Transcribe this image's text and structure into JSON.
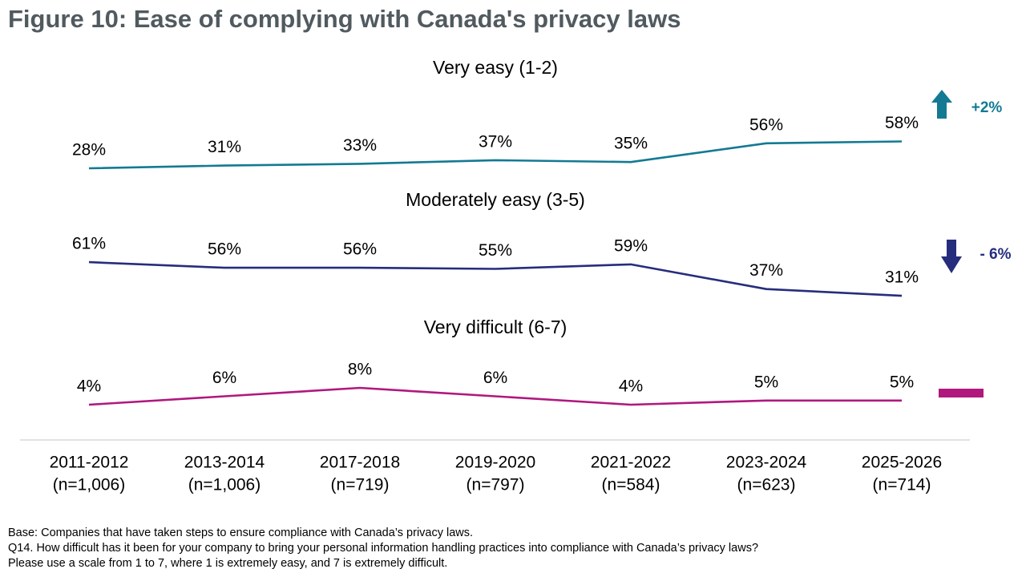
{
  "title": "Figure 10: Ease of complying with Canada's privacy laws",
  "footer": {
    "base": "Base: Companies that have taken steps to ensure compliance with Canada’s privacy laws.",
    "question": "Q14. How difficult has it been for your company to bring your personal information handling practices into compliance with Canada’s privacy laws?",
    "scale": "Please use a scale from 1 to 7, where 1 is extremely easy, and 7 is extremely difficult."
  },
  "chart_data": {
    "type": "line",
    "categories": [
      "2011-2012",
      "2013-2014",
      "2017-2018",
      "2019-2020",
      "2021-2022",
      "2023-2024",
      "2025-2026"
    ],
    "sample_sizes": [
      "(n=1,006)",
      "(n=1,006)",
      "(n=719)",
      "(n=797)",
      "(n=584)",
      "(n=623)",
      "(n=714)"
    ],
    "series": [
      {
        "name": "Very easy (1-2)",
        "values": [
          28,
          31,
          33,
          37,
          35,
          56,
          58
        ],
        "labels": [
          "28%",
          "31%",
          "33%",
          "37%",
          "35%",
          "56%",
          "58%"
        ],
        "color": "#137a93",
        "change": "+2%",
        "trend": "up"
      },
      {
        "name": "Moderately easy (3-5)",
        "values": [
          61,
          56,
          56,
          55,
          59,
          37,
          31
        ],
        "labels": [
          "61%",
          "56%",
          "56%",
          "55%",
          "59%",
          "37%",
          "31%"
        ],
        "color": "#262d7d",
        "change": "- 6%",
        "trend": "down"
      },
      {
        "name": "Very difficult (6-7)",
        "values": [
          4,
          6,
          8,
          6,
          4,
          5,
          5
        ],
        "labels": [
          "4%",
          "6%",
          "8%",
          "6%",
          "4%",
          "5%",
          "5%"
        ],
        "color": "#b0187e",
        "change": "",
        "trend": "flat"
      }
    ],
    "units": "%"
  }
}
